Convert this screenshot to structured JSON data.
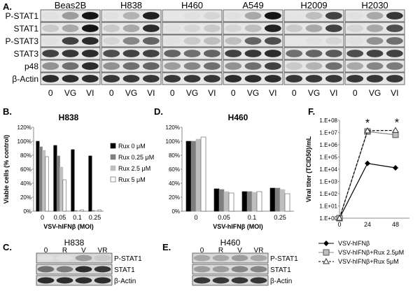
{
  "panelA": {
    "letter": "A.",
    "cell_lines": [
      "Beas2B",
      "H838",
      "H460",
      "A549",
      "H2009",
      "H2030"
    ],
    "rows": [
      "P-STAT1",
      "STAT1",
      "P-STAT3",
      "STAT3",
      "p48",
      "β-Actin"
    ],
    "lanes": [
      "0",
      "VG",
      "VI"
    ],
    "intensity": [
      [
        [
          0.05,
          0.35,
          0.95
        ],
        [
          0.05,
          0.25,
          0.9
        ],
        [
          0.02,
          0.05,
          0.1
        ],
        [
          0.05,
          0.3,
          0.95
        ],
        [
          0.03,
          0.2,
          0.75
        ],
        [
          0.05,
          0.3,
          0.8
        ]
      ],
      [
        [
          0.15,
          0.3,
          0.95
        ],
        [
          0.15,
          0.3,
          0.85
        ],
        [
          0.05,
          0.1,
          0.15
        ],
        [
          0.1,
          0.2,
          0.9
        ],
        [
          0.15,
          0.3,
          0.75
        ],
        [
          0.1,
          0.3,
          0.7
        ]
      ],
      [
        [
          0.05,
          0.75,
          0.85
        ],
        [
          0.1,
          0.45,
          0.6
        ],
        [
          0.05,
          0.15,
          0.2
        ],
        [
          0.2,
          0.6,
          0.7
        ],
        [
          0.02,
          0.05,
          0.1
        ],
        [
          0.05,
          0.4,
          0.55
        ]
      ],
      [
        [
          0.75,
          0.8,
          0.85
        ],
        [
          0.7,
          0.75,
          0.75
        ],
        [
          0.6,
          0.55,
          0.6
        ],
        [
          0.75,
          0.8,
          0.85
        ],
        [
          0.55,
          0.6,
          0.65
        ],
        [
          0.7,
          0.75,
          0.75
        ]
      ],
      [
        [
          0.4,
          0.55,
          0.85
        ],
        [
          0.4,
          0.55,
          0.6
        ],
        [
          0.35,
          0.45,
          0.55
        ],
        [
          0.4,
          0.55,
          0.75
        ],
        [
          0.15,
          0.25,
          0.55
        ],
        [
          0.3,
          0.45,
          0.5
        ]
      ],
      [
        [
          0.85,
          0.85,
          0.85
        ],
        [
          0.8,
          0.8,
          0.8
        ],
        [
          0.8,
          0.8,
          0.8
        ],
        [
          0.85,
          0.85,
          0.85
        ],
        [
          0.8,
          0.8,
          0.8
        ],
        [
          0.8,
          0.8,
          0.8
        ]
      ]
    ]
  },
  "panelB": {
    "letter": "B.",
    "chart_data": {
      "type": "bar",
      "title": "H838",
      "xlabel": "VSV-hIFNβ (MOI)",
      "ylabel": "Viable cells (% control)",
      "categories": [
        "0",
        "0.05",
        "0.1",
        "0.25"
      ],
      "ylim": [
        0,
        120
      ],
      "yticks": [
        "0%",
        "20%",
        "40%",
        "60%",
        "80%",
        "100%",
        "120%"
      ],
      "series": [
        {
          "name": "Rux 0 μM",
          "color": "#000000",
          "values": [
            100,
            94,
            88,
            79
          ]
        },
        {
          "name": "Rux 0.25 μM",
          "color": "#7f7f7f",
          "values": [
            92,
            79,
            1,
            1
          ]
        },
        {
          "name": "Rux 2.5 μM",
          "color": "#bfbfbf",
          "values": [
            87,
            63,
            1,
            1
          ]
        },
        {
          "name": "Rux 5 μM",
          "color": "#ffffff",
          "values": [
            78,
            45,
            2,
            2
          ]
        }
      ]
    }
  },
  "panelD": {
    "letter": "D.",
    "chart_data": {
      "type": "bar",
      "title": "H460",
      "xlabel": "VSV-hIFNβ (MOI)",
      "ylabel": "",
      "categories": [
        "0",
        "0.05",
        "0.1",
        "0.25"
      ],
      "ylim": [
        0,
        120
      ],
      "yticks": [
        "0%",
        "20%",
        "40%",
        "60%",
        "80%",
        "100%",
        "120%"
      ],
      "series": [
        {
          "color": "#000000",
          "values": [
            100,
            32,
            28,
            33
          ]
        },
        {
          "color": "#7f7f7f",
          "values": [
            100,
            31,
            28,
            33
          ]
        },
        {
          "color": "#bfbfbf",
          "values": [
            103,
            28,
            27,
            31
          ]
        },
        {
          "color": "#ffffff",
          "values": [
            106,
            26,
            28,
            25
          ]
        }
      ]
    }
  },
  "panelF": {
    "letter": "F.",
    "chart_data": {
      "type": "line",
      "ylabel": "Viral titer (TCID50)/mL",
      "x": [
        0,
        24,
        48
      ],
      "xticks": [
        "0",
        "24",
        "48"
      ],
      "yticks": [
        "1.E+00",
        "1.E+01",
        "1.E+02",
        "1.E+03",
        "1.E+04",
        "1.E+05",
        "1.E+06",
        "1.E+07",
        "1.E+08"
      ],
      "ylim_log10": [
        0,
        8
      ],
      "yscale": "log",
      "series": [
        {
          "name": "VSV-hIFNβ",
          "marker": "diamond",
          "dash": false,
          "values": [
            1,
            30000,
            13000
          ]
        },
        {
          "name": "VSV-hIFNβ+Rux 2.5μM",
          "marker": "square",
          "dash": false,
          "values": [
            1,
            12000000,
            6500000
          ]
        },
        {
          "name": "VSV-hIFNβ+Rux 5μM",
          "marker": "triangle",
          "dash": true,
          "values": [
            1,
            14000000,
            15000000
          ]
        }
      ],
      "annotations": [
        "*",
        "*"
      ]
    }
  },
  "panelC": {
    "letter": "C.",
    "title": "H838",
    "lanes": [
      "0",
      "R",
      "V",
      "VR"
    ],
    "rows": [
      "P-STAT1",
      "STAT1",
      "β-Actin"
    ],
    "intensity": [
      [
        0.05,
        0.05,
        0.35,
        0.15
      ],
      [
        0.55,
        0.5,
        0.85,
        0.8
      ],
      [
        0.85,
        0.85,
        0.85,
        0.85
      ]
    ]
  },
  "panelE": {
    "letter": "E.",
    "title": "H460",
    "lanes": [
      "0",
      "R",
      "V",
      "VR"
    ],
    "rows": [
      "P-STAT1",
      "STAT1",
      "β-Actin"
    ],
    "intensity": [
      [
        0.3,
        0.3,
        0.35,
        0.3
      ],
      [
        0.35,
        0.35,
        0.45,
        0.45
      ],
      [
        0.8,
        0.8,
        0.8,
        0.8
      ]
    ]
  }
}
